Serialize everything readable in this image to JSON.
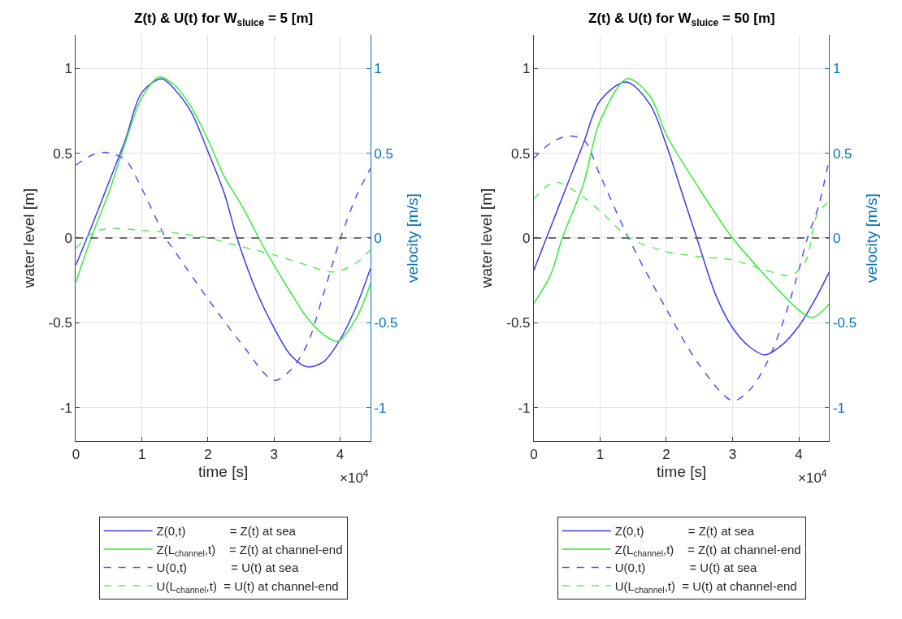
{
  "chart_data": [
    {
      "type": "line",
      "title": "Z(t) & U(t) for W$_{sluice}$ = 5 [m]",
      "xlabel": "time [s]",
      "ylabel": "water level [m]",
      "y2label": "velocity [m/s]",
      "annotations": [
        "×10$^{4}$"
      ],
      "xlim": [
        0,
        4.46
      ],
      "xticks": [
        0,
        1,
        2,
        3,
        4
      ],
      "ylim": [
        -1.2,
        1.2
      ],
      "yticks": [
        -1,
        -0.5,
        0,
        0.5,
        1
      ],
      "y2lim": [
        -1.2,
        1.2
      ],
      "y2ticks": [
        -1,
        -0.5,
        0,
        0.5,
        1
      ],
      "grid": true,
      "legend": "bottom",
      "ref_lines": [
        {
          "axis": "y",
          "value": 0,
          "label": null,
          "color": "#404040",
          "line_style": "dashed"
        }
      ],
      "series": [
        {
          "name": "Z(0,t)             = Z(t) at sea",
          "color": "#3c3cf0",
          "line_style": "solid",
          "x": [
            0,
            0.25,
            0.5,
            0.75,
            1,
            1.3,
            1.5,
            1.75,
            2,
            2.25,
            2.44,
            2.75,
            3,
            3.25,
            3.5,
            3.75,
            4,
            4.25,
            4.46
          ],
          "values": [
            -0.16,
            0.08,
            0.33,
            0.58,
            0.86,
            0.94,
            0.875,
            0.74,
            0.51,
            0.26,
            0,
            -0.33,
            -0.53,
            -0.69,
            -0.76,
            -0.73,
            -0.6,
            -0.4,
            -0.18
          ]
        },
        {
          "name": "Z(L$_{channel}$,t)    = Z(t) at channel-end",
          "color": "#33ee33",
          "line_style": "solid",
          "x": [
            0,
            0.25,
            0.5,
            0.75,
            1,
            1.27,
            1.5,
            1.75,
            2,
            2.25,
            2.5,
            2.77,
            3,
            3.25,
            3.5,
            3.75,
            3.97,
            4.25,
            4.46
          ],
          "values": [
            -0.26,
            0.02,
            0.27,
            0.565,
            0.83,
            0.95,
            0.9,
            0.77,
            0.58,
            0.36,
            0.2,
            0,
            -0.16,
            -0.32,
            -0.47,
            -0.57,
            -0.61,
            -0.47,
            -0.27
          ]
        },
        {
          "name": "U(0,t)             = U(t) at sea",
          "color": "#5050ff",
          "line_style": "dashed",
          "axis": "y2",
          "x": [
            0,
            0.25,
            0.46,
            0.75,
            1,
            1.36,
            1.5,
            2,
            2.5,
            3,
            3.25,
            3.5,
            3.75,
            4,
            4.25,
            4.46
          ],
          "values": [
            0.43,
            0.49,
            0.505,
            0.46,
            0.29,
            0,
            -0.08,
            -0.36,
            -0.62,
            -0.84,
            -0.78,
            -0.63,
            -0.33,
            -0.01,
            0.25,
            0.41
          ]
        },
        {
          "name": "U(L$_{channel}$,t)  = U(t) at channel-end",
          "color": "#55ee55",
          "line_style": "dashed",
          "axis": "y2",
          "x": [
            0,
            0.25,
            0.5,
            1,
            1.5,
            2,
            2.5,
            3,
            3.5,
            3.87,
            4.2,
            4.46
          ],
          "values": [
            -0.06,
            0.03,
            0.056,
            0.045,
            0.03,
            0,
            -0.05,
            -0.1,
            -0.16,
            -0.2,
            -0.16,
            -0.07
          ]
        }
      ]
    },
    {
      "type": "line",
      "title": "Z(t) & U(t) for W$_{sluice}$ = 50 [m]",
      "xlabel": "time [s]",
      "ylabel": "water level [m]",
      "y2label": "velocity [m/s]",
      "annotations": [
        "×10$^{4}$"
      ],
      "xlim": [
        0,
        4.46
      ],
      "xticks": [
        0,
        1,
        2,
        3,
        4
      ],
      "ylim": [
        -1.2,
        1.2
      ],
      "yticks": [
        -1,
        -0.5,
        0,
        0.5,
        1
      ],
      "y2lim": [
        -1.2,
        1.2
      ],
      "y2ticks": [
        -1,
        -0.5,
        0,
        0.5,
        1
      ],
      "grid": true,
      "legend": "bottom",
      "ref_lines": [
        {
          "axis": "y",
          "value": 0,
          "label": null,
          "color": "#404040",
          "line_style": "dashed"
        }
      ],
      "series": [
        {
          "name": "Z(0,t)             = Z(t) at sea",
          "color": "#3c3cf0",
          "line_style": "solid",
          "x": [
            0,
            0.25,
            0.5,
            0.75,
            1,
            1.39,
            1.75,
            2,
            2.25,
            2.46,
            2.75,
            3,
            3.25,
            3.49,
            3.75,
            4,
            4.25,
            4.46
          ],
          "values": [
            -0.19,
            0.06,
            0.31,
            0.56,
            0.81,
            0.92,
            0.79,
            0.55,
            0.25,
            0,
            -0.34,
            -0.53,
            -0.64,
            -0.69,
            -0.63,
            -0.52,
            -0.36,
            -0.2
          ]
        },
        {
          "name": "Z(L$_{channel}$,t)    = Z(t) at channel-end",
          "color": "#33ee33",
          "line_style": "solid",
          "x": [
            0,
            0.25,
            0.43,
            0.75,
            1,
            1.41,
            1.75,
            2,
            2.5,
            3,
            3.5,
            3.75,
            4,
            4.2,
            4.46
          ],
          "values": [
            -0.385,
            -0.22,
            0,
            0.32,
            0.69,
            0.94,
            0.84,
            0.61,
            0.29,
            0,
            -0.225,
            -0.33,
            -0.425,
            -0.47,
            -0.39
          ]
        },
        {
          "name": "U(0,t)             = U(t) at sea",
          "color": "#5050ff",
          "line_style": "dashed",
          "axis": "y2",
          "x": [
            0,
            0.25,
            0.49,
            0.75,
            1,
            1.43,
            2,
            2.5,
            3,
            3.25,
            3.5,
            3.75,
            4,
            4.13,
            4.3,
            4.46
          ],
          "values": [
            0.47,
            0.56,
            0.6,
            0.58,
            0.37,
            0,
            -0.42,
            -0.75,
            -0.96,
            -0.9,
            -0.75,
            -0.51,
            -0.19,
            0,
            0.19,
            0.47
          ]
        },
        {
          "name": "U(L$_{channel}$,t)  = U(t) at channel-end",
          "color": "#55ee55",
          "line_style": "dashed",
          "axis": "y2",
          "x": [
            0,
            0.32,
            0.75,
            1,
            1.45,
            2,
            2.5,
            3,
            3.5,
            3.88,
            4.1,
            4.27,
            4.46
          ],
          "values": [
            0.23,
            0.33,
            0.24,
            0.16,
            0,
            -0.08,
            -0.11,
            -0.13,
            -0.19,
            -0.22,
            -0.14,
            0.13,
            0.22
          ]
        }
      ]
    }
  ]
}
